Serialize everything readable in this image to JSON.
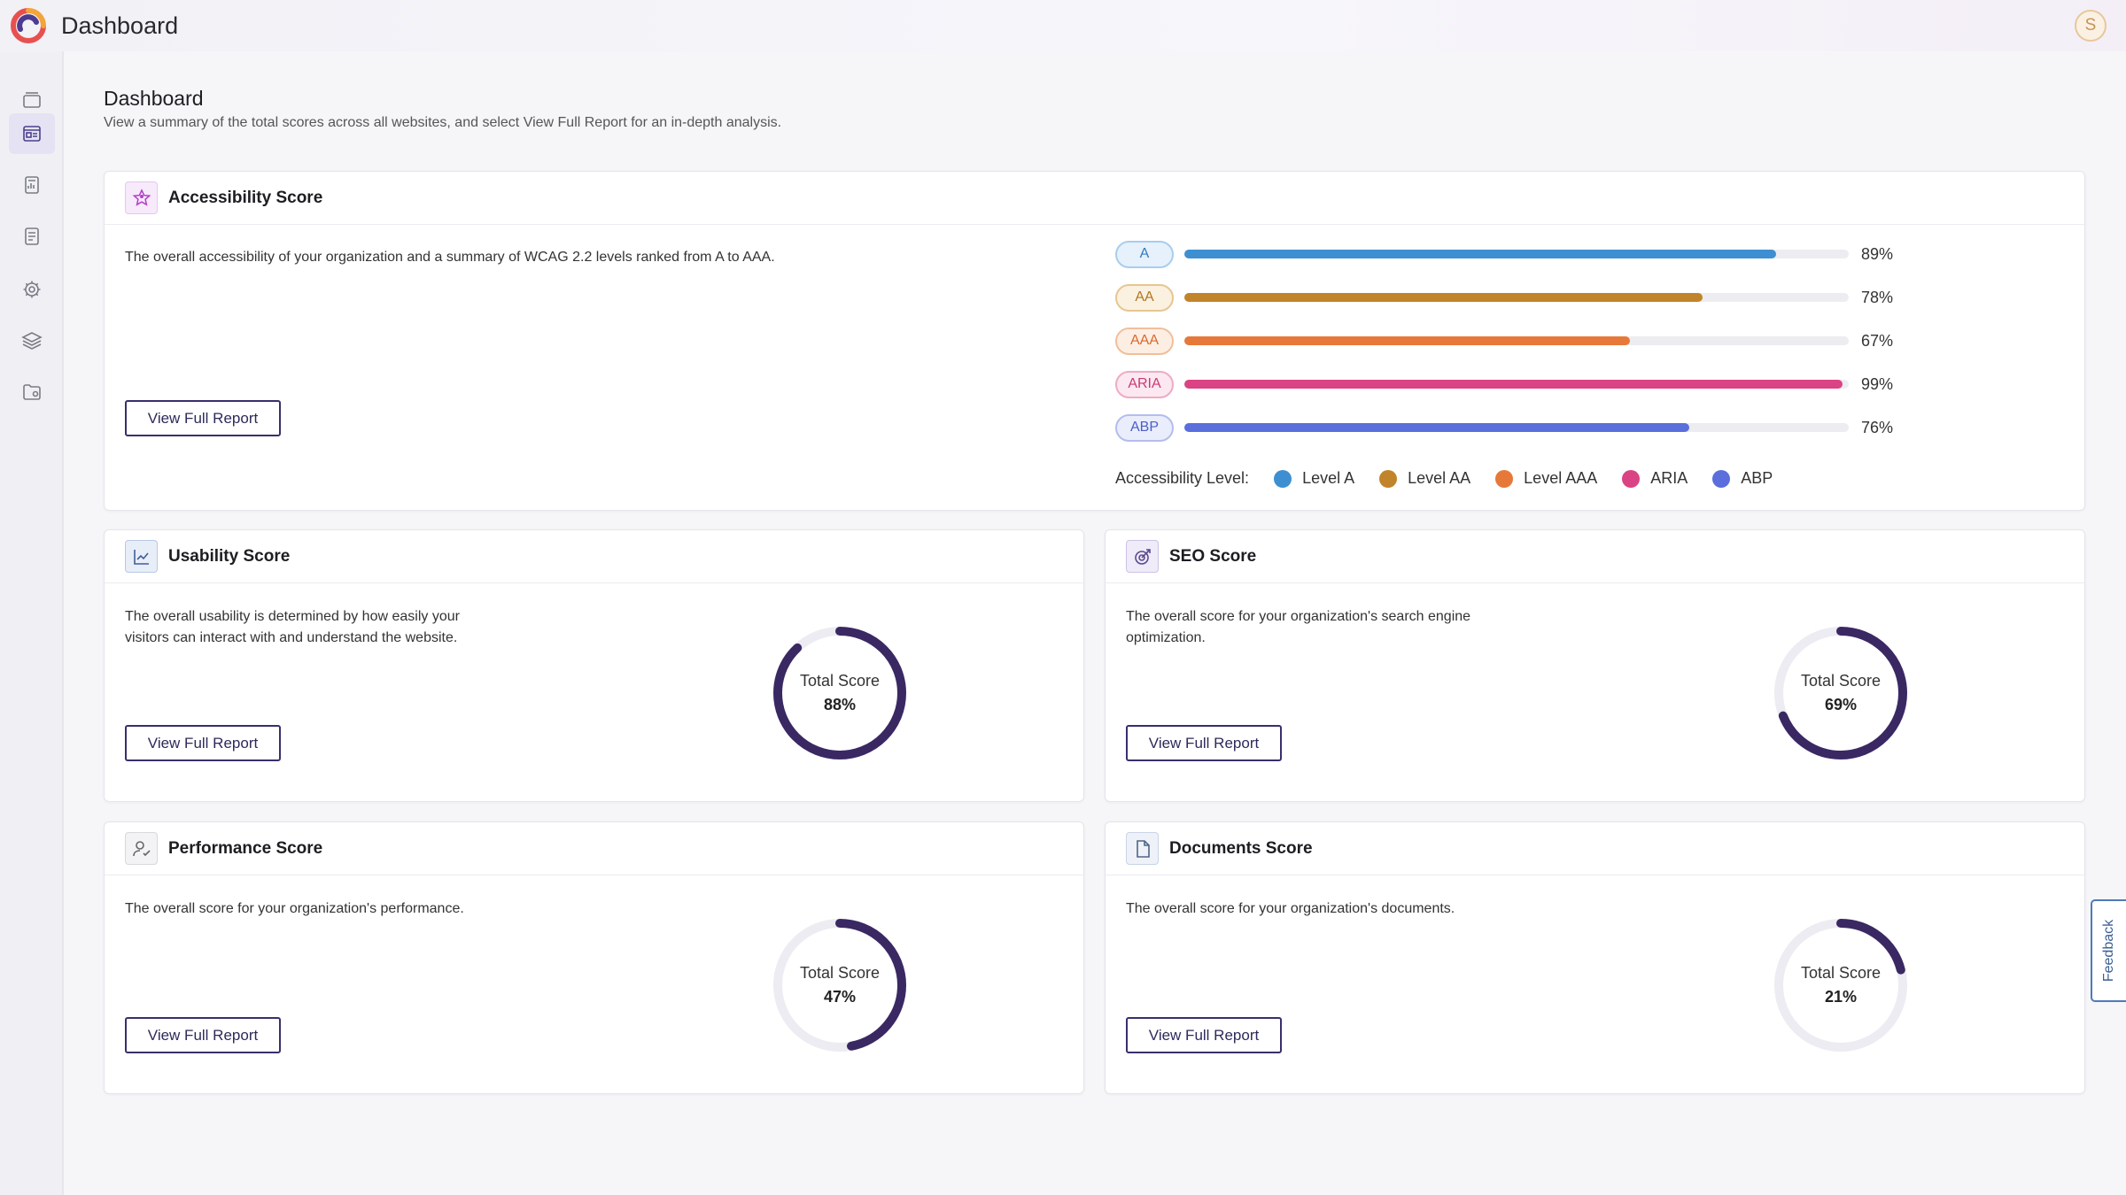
{
  "app": {
    "title": "Dashboard",
    "avatar_initial": "S"
  },
  "sidebar": {
    "items": [
      {
        "icon": "cards-icon"
      },
      {
        "icon": "dashboard-icon",
        "active": true
      },
      {
        "icon": "report-icon"
      },
      {
        "icon": "document-icon"
      },
      {
        "icon": "gear-icon"
      },
      {
        "icon": "layers-icon"
      },
      {
        "icon": "folder-settings-icon"
      }
    ]
  },
  "page": {
    "title": "Dashboard",
    "subtitle": "View a summary of the total scores across all websites, and select View Full Report for an in-depth analysis."
  },
  "accessibility": {
    "title": "Accessibility Score",
    "description": "The overall accessibility of your organization and a summary of WCAG 2.2 levels ranked from A to AAA.",
    "button": "View Full Report",
    "legend_label": "Accessibility Level:",
    "levels": [
      {
        "badge": "A",
        "value": 89,
        "pct": "89%",
        "color": "#3d8fd1",
        "bg": "#e6f1fb",
        "border": "#a9cdee",
        "text": "#2f7bc2",
        "legend": "Level A"
      },
      {
        "badge": "AA",
        "value": 78,
        "pct": "78%",
        "color": "#c1842a",
        "bg": "#fbf1e0",
        "border": "#e6c690",
        "text": "#b07623",
        "legend": "Level AA"
      },
      {
        "badge": "AAA",
        "value": 67,
        "pct": "67%",
        "color": "#e6793a",
        "bg": "#fdeee4",
        "border": "#f1bf9c",
        "text": "#d86a2b",
        "legend": "Level AAA"
      },
      {
        "badge": "ARIA",
        "value": 99,
        "pct": "99%",
        "color": "#da4384",
        "bg": "#fce8f0",
        "border": "#eeaac6",
        "text": "#c93a76",
        "legend": "ARIA"
      },
      {
        "badge": "ABP",
        "value": 76,
        "pct": "76%",
        "color": "#5a6fdc",
        "bg": "#eaedfb",
        "border": "#b3bdee",
        "text": "#4a5ec9",
        "legend": "ABP"
      }
    ]
  },
  "usability": {
    "title": "Usability Score",
    "description_lines": [
      "The overall usability is determined by how easily your",
      "visitors can interact with and understand the website."
    ],
    "button": "View Full Report",
    "score_label": "Total Score",
    "score_text": "88%",
    "score": 88
  },
  "seo": {
    "title": "SEO Score",
    "description_lines": [
      "The overall score for your organization's search engine",
      "optimization."
    ],
    "button": "View Full Report",
    "score_label": "Total Score",
    "score_text": "69%",
    "score": 69
  },
  "performance": {
    "title": "Performance Score",
    "description": "The overall score for your organization's performance.",
    "button": "View Full Report",
    "score_label": "Total Score",
    "score_text": "47%",
    "score": 47
  },
  "documents": {
    "title": "Documents Score",
    "description": "The overall score for your organization's documents.",
    "button": "View Full Report",
    "score_label": "Total Score",
    "score_text": "21%",
    "score": 21
  },
  "feedback": {
    "label": "Feedback"
  },
  "colors": {
    "donut_fill": "#3a2863",
    "donut_track": "#ececf2",
    "button_border": "#3a2f6b"
  }
}
